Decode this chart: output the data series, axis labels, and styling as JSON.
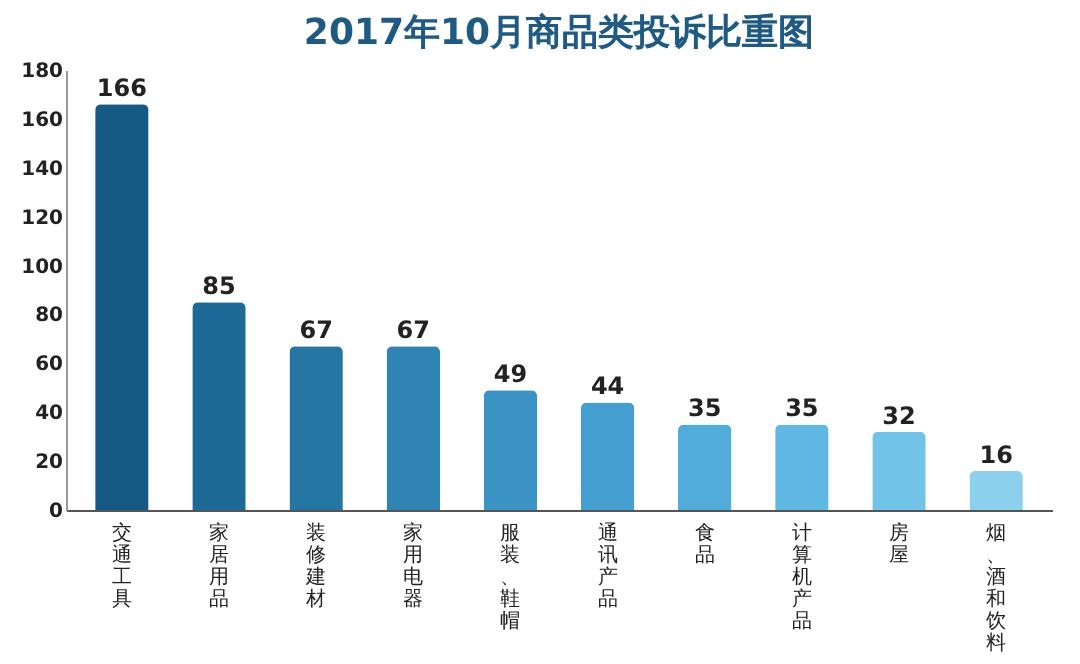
{
  "chart_data": {
    "type": "bar",
    "title": "2017年10月商品类投诉比重图",
    "categories": [
      "交通工具",
      "家居用品",
      "装修建材",
      "家用电器",
      "服装、鞋帽",
      "通讯产品",
      "食品",
      "计算机产品",
      "房屋",
      "烟、酒和饮料"
    ],
    "values": [
      166,
      85,
      67,
      67,
      49,
      44,
      35,
      35,
      32,
      16
    ],
    "colors": [
      "#155a84",
      "#1d6a96",
      "#2676a4",
      "#2f84b4",
      "#3a93c4",
      "#449fd0",
      "#52acda",
      "#60b8e2",
      "#72c3e8",
      "#8dd0ee"
    ],
    "ylim": [
      0,
      180
    ],
    "yticks": [
      0,
      20,
      40,
      60,
      80,
      100,
      120,
      140,
      160,
      180
    ],
    "grid": false,
    "data_labels": true
  }
}
